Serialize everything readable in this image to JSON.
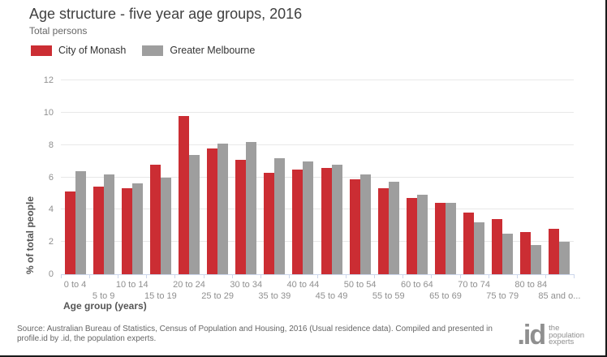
{
  "header": {
    "title": "Age structure - five year age groups, 2016",
    "subtitle": "Total persons"
  },
  "legend": {
    "items": [
      {
        "label": "City of Monash",
        "color": "#cb2d33"
      },
      {
        "label": "Greater Melbourne",
        "color": "#9e9e9e"
      }
    ]
  },
  "chart_data": {
    "type": "bar",
    "title": "Age structure - five year age groups, 2016",
    "subtitle": "Total persons",
    "xlabel": "Age group (years)",
    "ylabel": "% of total people",
    "ylim": [
      0,
      12
    ],
    "ytick_interval": 2,
    "yticks": [
      0,
      2,
      4,
      6,
      8,
      10,
      12
    ],
    "grid": true,
    "legend_position": "top-left",
    "categories": [
      "0 to 4",
      "5 to 9",
      "10 to 14",
      "15 to 19",
      "20 to 24",
      "25 to 29",
      "30 to 34",
      "35 to 39",
      "40 to 44",
      "45 to 49",
      "50 to 54",
      "55 to 59",
      "60 to 64",
      "65 to 69",
      "70 to 74",
      "75 to 79",
      "80 to 84",
      "85 and o..."
    ],
    "series": [
      {
        "name": "City of Monash",
        "color": "#cb2d33",
        "values": [
          5.1,
          5.4,
          5.3,
          6.8,
          9.8,
          7.8,
          7.1,
          6.3,
          6.5,
          6.6,
          5.9,
          5.3,
          4.7,
          4.4,
          3.8,
          3.4,
          2.6,
          2.8
        ]
      },
      {
        "name": "Greater Melbourne",
        "color": "#9e9e9e",
        "values": [
          6.4,
          6.2,
          5.6,
          6.0,
          7.4,
          8.1,
          8.2,
          7.2,
          7.0,
          6.8,
          6.2,
          5.7,
          4.9,
          4.4,
          3.2,
          2.5,
          1.8,
          2.0
        ]
      }
    ]
  },
  "footer": {
    "source_line1": "Source: Australian Bureau of Statistics, Census of Population and Housing, 2016 (Usual residence data). Compiled and presented in",
    "source_line2": "profile.id by .id, the population experts.",
    "logo": {
      "text": ".id",
      "tagline": [
        "the",
        "population",
        "experts"
      ]
    }
  }
}
